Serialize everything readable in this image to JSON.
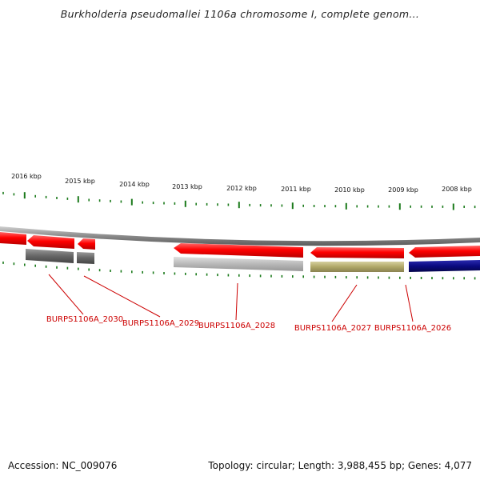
{
  "title": "Burkholderia pseudomallei 1106a chromosome I, complete genom...",
  "footer": {
    "accession": "Accession: NC_009076",
    "summary": "Topology: circular; Length: 3,988,455 bp; Genes: 4,077"
  },
  "ruler": {
    "unit": "kbp",
    "ticks": [
      "2016 kbp",
      "2015 kbp",
      "2014 kbp",
      "2013 kbp",
      "2012 kbp",
      "2011 kbp",
      "2010 kbp",
      "2009 kbp",
      "2008 kbp"
    ]
  },
  "genes": [
    {
      "locus": "BURPS1106A_2030"
    },
    {
      "locus": "BURPS1106A_2029"
    },
    {
      "locus": "BURPS1106A_2028"
    },
    {
      "locus": "BURPS1106A_2027"
    },
    {
      "locus": "BURPS1106A_2026"
    }
  ],
  "colors": {
    "cds": "#ff0000",
    "backbone": "#888888",
    "ruler_ticks": "#1a7a1a",
    "labels": "#cc0000",
    "feature_gray_dark": "#666666",
    "feature_gray_light": "#b8b8b8",
    "feature_olive": "#b0a868",
    "feature_navy": "#0a0a80"
  }
}
